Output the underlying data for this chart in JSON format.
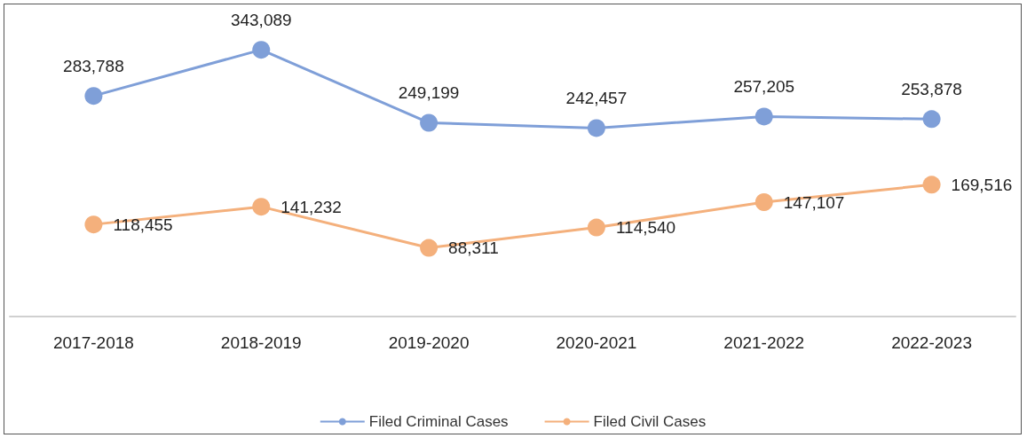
{
  "chart_data": {
    "type": "line",
    "categories": [
      "2017-2018",
      "2018-2019",
      "2019-2020",
      "2020-2021",
      "2021-2022",
      "2022-2023"
    ],
    "series": [
      {
        "name": "Filed Criminal Cases",
        "color": "#7f9fd8",
        "values": [
          283788,
          343089,
          249199,
          242457,
          257205,
          253878
        ],
        "value_labels": [
          "283,788",
          "343,089",
          "249,199",
          "242,457",
          "257,205",
          "253,878"
        ]
      },
      {
        "name": "Filed Civil Cases",
        "color": "#f4b07c",
        "values": [
          118455,
          141232,
          88311,
          114540,
          147107,
          169516
        ],
        "value_labels": [
          "118,455",
          "141,232",
          "88,311",
          "114,540",
          "147,107",
          "169,516"
        ]
      }
    ],
    "legend": "bottom",
    "marker": "circle",
    "line_style": "solid",
    "grid": false
  }
}
